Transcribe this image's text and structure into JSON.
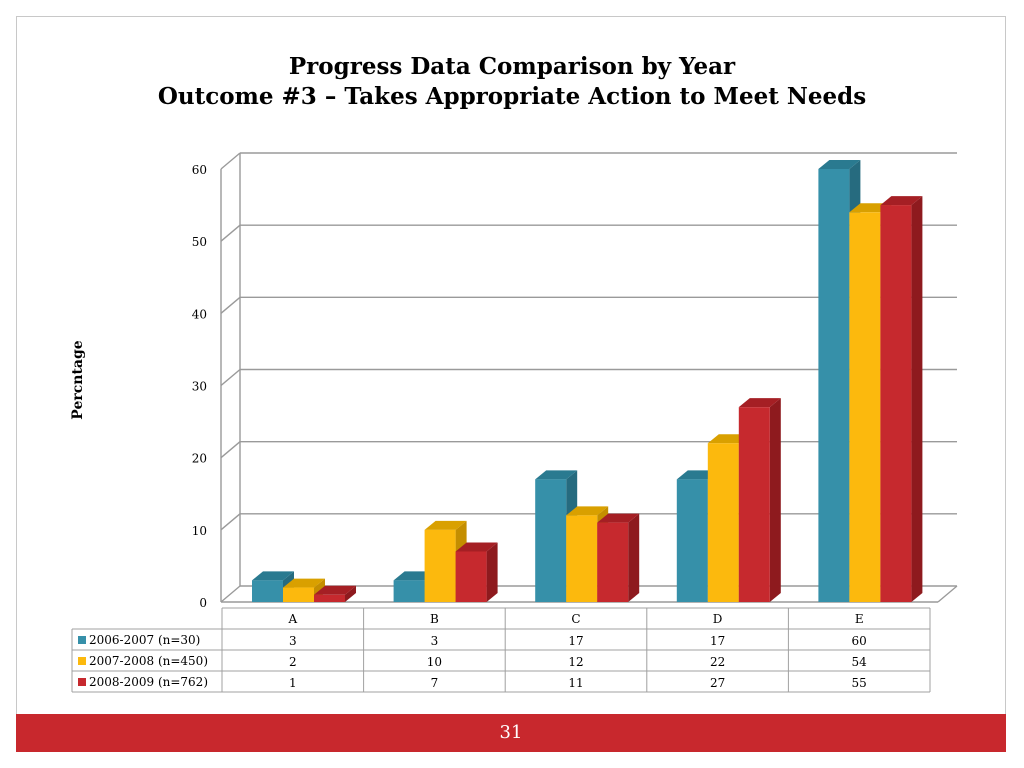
{
  "slide": {
    "title_line1": "Progress Data Comparison by Year",
    "title_line2": "Outcome #3 – Takes Appropriate Action to Meet Needs",
    "page_number": "31"
  },
  "colors": {
    "series": [
      "#3690a9",
      "#fcb90d",
      "#c6292e"
    ],
    "series_side": [
      "#266b7f",
      "#c48e00",
      "#8e1a1e"
    ],
    "series_top": [
      "#2a7a90",
      "#d9a000",
      "#a51f24"
    ],
    "footer": "#c8282d",
    "grid": "#808080"
  },
  "chart_data": {
    "type": "bar",
    "title": "",
    "xlabel": "",
    "ylabel": "Percntage",
    "ylim": [
      0,
      60
    ],
    "yticks": [
      0,
      10,
      20,
      30,
      40,
      50,
      60
    ],
    "categories": [
      "A",
      "B",
      "C",
      "D",
      "E"
    ],
    "series": [
      {
        "name": "2006-2007 (n=30)",
        "values": [
          3,
          3,
          17,
          17,
          60
        ]
      },
      {
        "name": "2007-2008 (n=450)",
        "values": [
          2,
          10,
          12,
          22,
          54
        ]
      },
      {
        "name": "2008-2009 (n=762)",
        "values": [
          1,
          7,
          11,
          27,
          55
        ]
      }
    ],
    "grid": true,
    "legend": "data-table-below",
    "three_d": true
  }
}
